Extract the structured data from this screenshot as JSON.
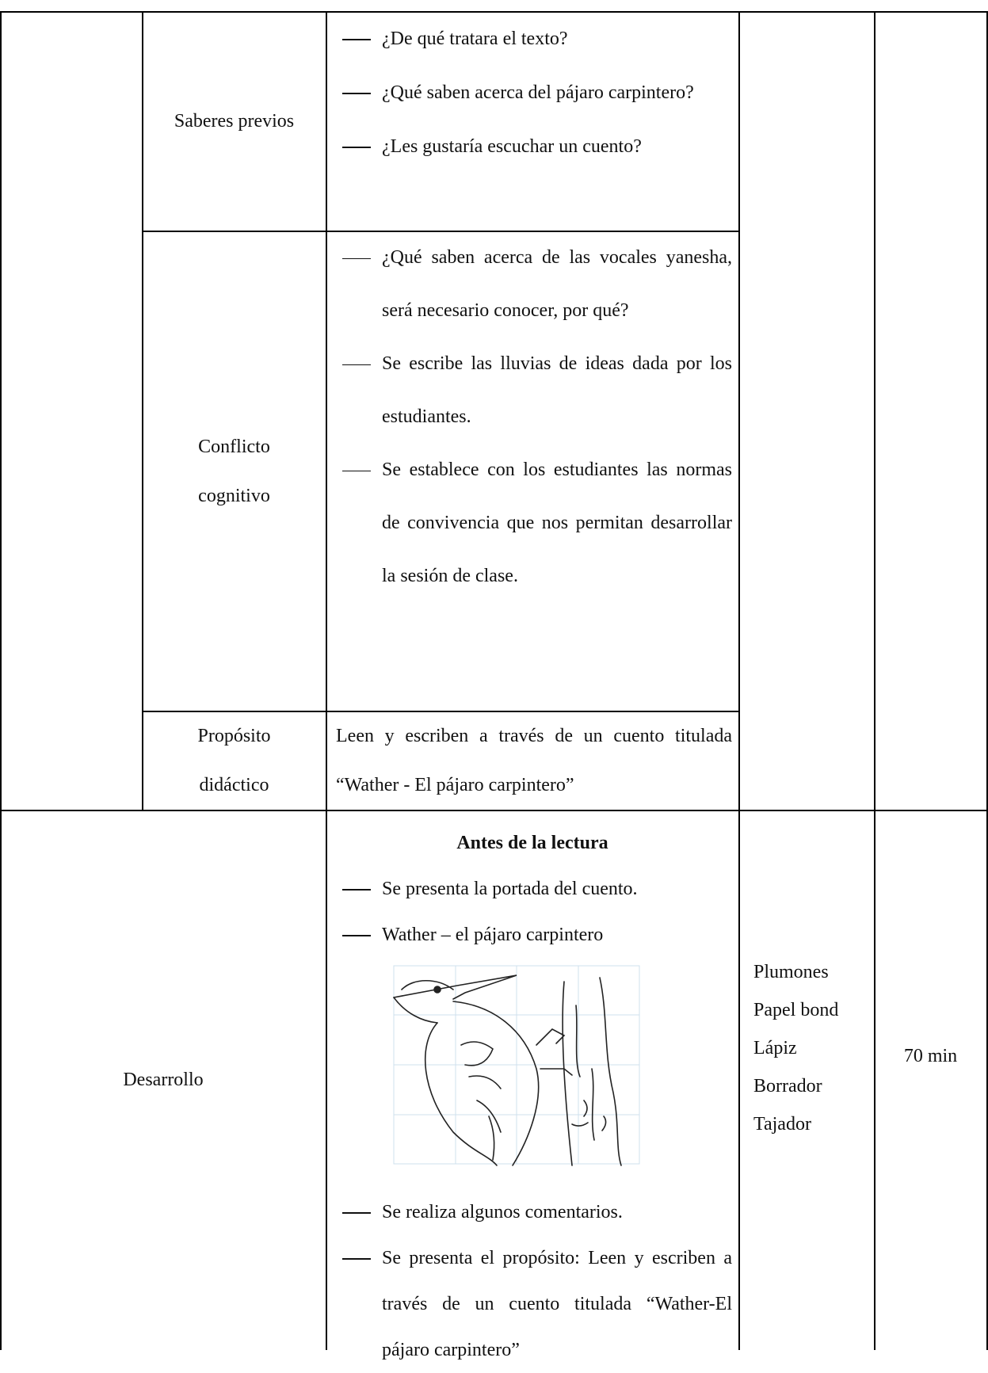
{
  "rows": [
    {
      "label": "Saberes previos",
      "items": [
        "¿De qué tratara el texto?",
        "¿Qué saben acerca del pájaro carpintero?",
        "¿Les gustaría escuchar un cuento?"
      ]
    },
    {
      "label": "Conflicto cognitivo",
      "items": [
        "¿Qué saben acerca de las vocales yanesha, será necesario conocer, por qué?",
        "Se escribe las lluvias de ideas dada por los estudiantes.",
        "Se establece con los estudiantes las normas de convivencia que nos permitan desarrollar la sesión de clase."
      ]
    },
    {
      "label": "Propósito didáctico",
      "text": "Leen y escriben a través  de  un cuento titulada “Wather - El pájaro carpintero”"
    }
  ],
  "desarrollo": {
    "stage": "Desarrollo",
    "heading": "Antes de la lectura",
    "items_before": [
      "Se presenta la portada del cuento.",
      "Wather – el pájaro carpintero"
    ],
    "items_after": [
      "Se realiza algunos comentarios.",
      "Se presenta el propósito: Leen y escriben a través de un cuento titulada “Wather-El pájaro carpintero”"
    ],
    "materials": [
      "Plumones",
      "Papel bond",
      "Lápiz",
      "Borrador",
      "Tajador"
    ],
    "time": "70 min"
  }
}
